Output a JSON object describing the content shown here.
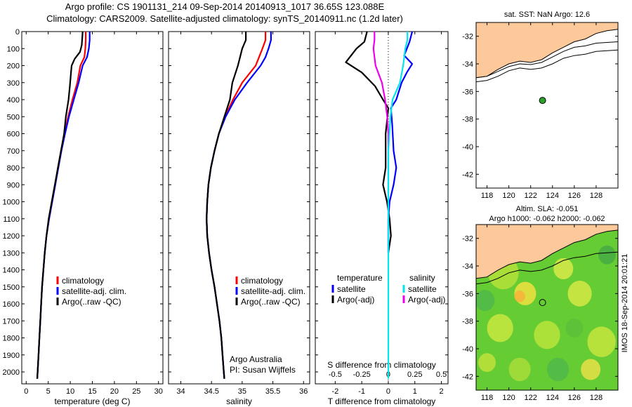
{
  "header": {
    "line1": "Argo profile: CS 1901131_214 09-Sep-2014 20140913_1017 36.65S 123.088E",
    "line2": "Climatology: CARS2009. Satellite-adjusted climatology: synTS_20140911.nc (1.2d later)"
  },
  "watermark": "IMOS 18-Sep-2014 20:01:21",
  "colors": {
    "climatology": "#ff0000",
    "satellite": "#0000ff",
    "argo": "#000000",
    "salinity_satellite": "#00e5ee",
    "salinity_argo": "#ee00ee",
    "land": "#fdc99a",
    "sst_marker": "#2ca02c"
  },
  "chart_data": [
    {
      "type": "line",
      "id": "temperature",
      "xlabel": "temperature (deg C)",
      "ylabel": "",
      "xlim": [
        -1,
        31
      ],
      "ylim": [
        2070,
        0
      ],
      "xticks": [
        "0",
        "5",
        "10",
        "15",
        "20",
        "25",
        "30"
      ],
      "yticks": [
        "0",
        "100",
        "200",
        "300",
        "400",
        "500",
        "600",
        "700",
        "800",
        "900",
        "1000",
        "1100",
        "1200",
        "1300",
        "1400",
        "1500",
        "1600",
        "1700",
        "1800",
        "1900",
        "2000"
      ],
      "legend": [
        "climatology",
        "satellite-adj. clim.",
        "Argo(..raw -QC)"
      ],
      "series": [
        {
          "name": "climatology",
          "color": "#ff0000",
          "points": [
            [
              13.5,
              0
            ],
            [
              13.5,
              50
            ],
            [
              13.4,
              100
            ],
            [
              13.2,
              150
            ],
            [
              12.3,
              200
            ],
            [
              11.6,
              300
            ],
            [
              10.5,
              400
            ],
            [
              9.5,
              500
            ],
            [
              8.7,
              600
            ],
            [
              7.9,
              700
            ],
            [
              7.2,
              800
            ],
            [
              6.6,
              900
            ],
            [
              5.9,
              1000
            ],
            [
              5.2,
              1100
            ],
            [
              4.6,
              1200
            ],
            [
              4.2,
              1300
            ],
            [
              3.9,
              1400
            ],
            [
              3.6,
              1500
            ],
            [
              3.4,
              1600
            ],
            [
              3.2,
              1700
            ],
            [
              3.0,
              1800
            ],
            [
              2.8,
              1900
            ],
            [
              2.6,
              2000
            ],
            [
              2.5,
              2040
            ]
          ]
        },
        {
          "name": "satellite-adj. clim.",
          "color": "#0000ff",
          "points": [
            [
              14.4,
              0
            ],
            [
              14.4,
              50
            ],
            [
              14.2,
              100
            ],
            [
              13.8,
              150
            ],
            [
              12.8,
              200
            ],
            [
              11.9,
              300
            ],
            [
              10.8,
              400
            ],
            [
              9.7,
              500
            ],
            [
              8.8,
              600
            ],
            [
              8.0,
              700
            ],
            [
              7.3,
              800
            ],
            [
              6.6,
              900
            ],
            [
              5.9,
              1000
            ],
            [
              5.2,
              1100
            ],
            [
              4.6,
              1200
            ],
            [
              4.2,
              1300
            ],
            [
              3.9,
              1400
            ],
            [
              3.6,
              1500
            ],
            [
              3.4,
              1600
            ],
            [
              3.2,
              1700
            ],
            [
              3.0,
              1800
            ],
            [
              2.8,
              1900
            ],
            [
              2.6,
              2000
            ],
            [
              2.5,
              2040
            ]
          ]
        },
        {
          "name": "Argo(..raw -QC)",
          "color": "#000000",
          "points": [
            [
              12.8,
              0
            ],
            [
              12.7,
              40
            ],
            [
              12.6,
              80
            ],
            [
              12.2,
              120
            ],
            [
              11.0,
              160
            ],
            [
              10.3,
              200
            ],
            [
              10.1,
              260
            ],
            [
              9.9,
              320
            ],
            [
              9.6,
              400
            ],
            [
              9.3,
              450
            ],
            [
              9.0,
              500
            ],
            [
              8.6,
              600
            ],
            [
              7.9,
              700
            ],
            [
              7.2,
              800
            ],
            [
              6.5,
              900
            ],
            [
              5.8,
              1000
            ],
            [
              5.1,
              1100
            ],
            [
              4.6,
              1200
            ],
            [
              4.2,
              1300
            ],
            [
              3.9,
              1400
            ],
            [
              3.6,
              1500
            ],
            [
              3.4,
              1600
            ],
            [
              3.2,
              1700
            ],
            [
              3.0,
              1800
            ],
            [
              2.8,
              1900
            ],
            [
              2.6,
              2000
            ],
            [
              2.5,
              2040
            ]
          ]
        }
      ]
    },
    {
      "type": "line",
      "id": "salinity",
      "xlabel": "salinity",
      "xlim": [
        33.8,
        36.1
      ],
      "ylim": [
        2070,
        0
      ],
      "xticks": [
        "34",
        "34.5",
        "35",
        "35.5",
        "36"
      ],
      "legend": [
        "climatology",
        "satellite-adj. clim.",
        "Argo(..raw -QC)"
      ],
      "annotation": [
        "Argo Australia",
        "PI: Susan Wijffels"
      ],
      "series": [
        {
          "name": "climatology",
          "color": "#ff0000",
          "points": [
            [
              35.38,
              0
            ],
            [
              35.38,
              50
            ],
            [
              35.33,
              100
            ],
            [
              35.22,
              200
            ],
            [
              35.0,
              300
            ],
            [
              34.85,
              400
            ],
            [
              34.72,
              500
            ],
            [
              34.62,
              600
            ],
            [
              34.55,
              700
            ],
            [
              34.49,
              800
            ],
            [
              34.45,
              900
            ],
            [
              34.43,
              1000
            ],
            [
              34.42,
              1100
            ],
            [
              34.43,
              1200
            ],
            [
              34.46,
              1300
            ],
            [
              34.5,
              1400
            ],
            [
              34.55,
              1500
            ],
            [
              34.59,
              1600
            ],
            [
              34.63,
              1700
            ],
            [
              34.66,
              1800
            ],
            [
              34.68,
              1900
            ],
            [
              34.7,
              2000
            ],
            [
              34.71,
              2040
            ]
          ]
        },
        {
          "name": "satellite-adj. clim.",
          "color": "#0000ff",
          "points": [
            [
              35.47,
              0
            ],
            [
              35.47,
              50
            ],
            [
              35.43,
              100
            ],
            [
              35.38,
              150
            ],
            [
              35.3,
              200
            ],
            [
              35.08,
              300
            ],
            [
              34.88,
              400
            ],
            [
              34.73,
              500
            ],
            [
              34.62,
              600
            ],
            [
              34.55,
              700
            ],
            [
              34.49,
              800
            ],
            [
              34.45,
              900
            ],
            [
              34.43,
              1000
            ],
            [
              34.42,
              1100
            ],
            [
              34.43,
              1200
            ],
            [
              34.46,
              1300
            ],
            [
              34.5,
              1400
            ],
            [
              34.55,
              1500
            ],
            [
              34.59,
              1600
            ],
            [
              34.63,
              1700
            ],
            [
              34.66,
              1800
            ],
            [
              34.68,
              1900
            ],
            [
              34.7,
              2000
            ],
            [
              34.71,
              2040
            ]
          ]
        },
        {
          "name": "Argo(..raw -QC)",
          "color": "#000000",
          "points": [
            [
              35.06,
              0
            ],
            [
              35.06,
              50
            ],
            [
              35.0,
              100
            ],
            [
              34.93,
              200
            ],
            [
              34.84,
              300
            ],
            [
              34.8,
              400
            ],
            [
              34.71,
              500
            ],
            [
              34.62,
              600
            ],
            [
              34.55,
              700
            ],
            [
              34.49,
              800
            ],
            [
              34.45,
              900
            ],
            [
              34.43,
              1000
            ],
            [
              34.42,
              1100
            ],
            [
              34.43,
              1200
            ],
            [
              34.46,
              1300
            ],
            [
              34.5,
              1400
            ],
            [
              34.55,
              1500
            ],
            [
              34.59,
              1600
            ],
            [
              34.63,
              1700
            ],
            [
              34.66,
              1800
            ],
            [
              34.68,
              1900
            ],
            [
              34.7,
              2000
            ],
            [
              34.71,
              2040
            ]
          ]
        }
      ]
    },
    {
      "type": "line",
      "id": "difference",
      "xlabel": "T difference from climatology",
      "xlabel_top": "S difference from climatology",
      "xlim": [
        -2.75,
        2.25
      ],
      "ylim": [
        2070,
        0
      ],
      "xticks": [
        "-2",
        "-1",
        "0",
        "1",
        "2"
      ],
      "xticks_s": [
        "-0.5",
        "-0.25",
        "0",
        "0.25",
        "0.5"
      ],
      "legend_headers": [
        "temperature",
        "salinity"
      ],
      "legend": [
        "satellite",
        "Argo(-adj)",
        "satellite",
        "Argo(-adj)"
      ],
      "series": [
        {
          "name": "temperature satellite",
          "color": "#0000ff",
          "points": [
            [
              0.9,
              0
            ],
            [
              0.8,
              60
            ],
            [
              0.7,
              100
            ],
            [
              0.6,
              140
            ],
            [
              0.9,
              190
            ],
            [
              0.7,
              240
            ],
            [
              0.5,
              300
            ],
            [
              0.3,
              400
            ],
            [
              0.1,
              450
            ],
            [
              0.15,
              550
            ],
            [
              0.2,
              700
            ],
            [
              0.3,
              800
            ],
            [
              0.2,
              900
            ],
            [
              0.05,
              1000
            ],
            [
              0.0,
              1100
            ],
            [
              0.0,
              1200
            ],
            [
              0.0,
              1300
            ]
          ]
        },
        {
          "name": "temperature Argo(-adj)",
          "color": "#000000",
          "points": [
            [
              -0.8,
              0
            ],
            [
              -0.9,
              60
            ],
            [
              -1.2,
              100
            ],
            [
              -1.6,
              180
            ],
            [
              -1.0,
              240
            ],
            [
              -0.5,
              320
            ],
            [
              -0.2,
              400
            ],
            [
              0.0,
              450
            ],
            [
              -0.1,
              600
            ],
            [
              -0.1,
              800
            ],
            [
              -0.2,
              900
            ],
            [
              -0.05,
              1000
            ],
            [
              0.05,
              1100
            ],
            [
              0.1,
              1200
            ],
            [
              0.0,
              1300
            ]
          ]
        },
        {
          "name": "salinity satellite",
          "color": "#00e5ee",
          "points": [
            [
              0.18,
              0
            ],
            [
              0.18,
              50
            ],
            [
              0.16,
              100
            ],
            [
              0.14,
              200
            ],
            [
              0.11,
              300
            ],
            [
              0.04,
              400
            ],
            [
              0.02,
              500
            ],
            [
              0.01,
              600
            ],
            [
              0.0,
              700
            ],
            [
              0.0,
              900
            ],
            [
              0.0,
              1200
            ],
            [
              0.0,
              1600
            ],
            [
              0.0,
              2040
            ]
          ]
        },
        {
          "name": "salinity Argo(-adj)",
          "color": "#ee00ee",
          "points": [
            [
              -0.13,
              0
            ],
            [
              -0.13,
              50
            ],
            [
              -0.14,
              100
            ],
            [
              -0.12,
              200
            ],
            [
              -0.06,
              300
            ],
            [
              -0.03,
              400
            ],
            [
              -0.01,
              500
            ],
            [
              0.0,
              600
            ],
            [
              0.0,
              900
            ],
            [
              0.0,
              1200
            ],
            [
              0.0,
              1300
            ]
          ]
        }
      ]
    },
    {
      "type": "map",
      "id": "sst",
      "title": "sat. SST: NaN Argo: 12.6",
      "xlim": [
        117,
        130
      ],
      "ylim": [
        -43,
        -31
      ],
      "xticks": [
        "118",
        "120",
        "122",
        "124",
        "126",
        "128"
      ],
      "yticks": [
        "-32",
        "-34",
        "-36",
        "-38",
        "-40",
        "-42"
      ],
      "marker": {
        "lon": 123.088,
        "lat": -36.65
      }
    },
    {
      "type": "map",
      "id": "sla",
      "title_line1": "Altim. SLA: -0.051",
      "title_line2": "Argo h1000: -0.062 h2000: -0.062",
      "xlim": [
        117,
        130
      ],
      "ylim": [
        -43,
        -31
      ],
      "xticks": [
        "118",
        "120",
        "122",
        "124",
        "126",
        "128"
      ],
      "yticks": [
        "-32",
        "-34",
        "-36",
        "-38",
        "-40",
        "-42"
      ],
      "marker": {
        "lon": 123.088,
        "lat": -36.65
      }
    }
  ]
}
